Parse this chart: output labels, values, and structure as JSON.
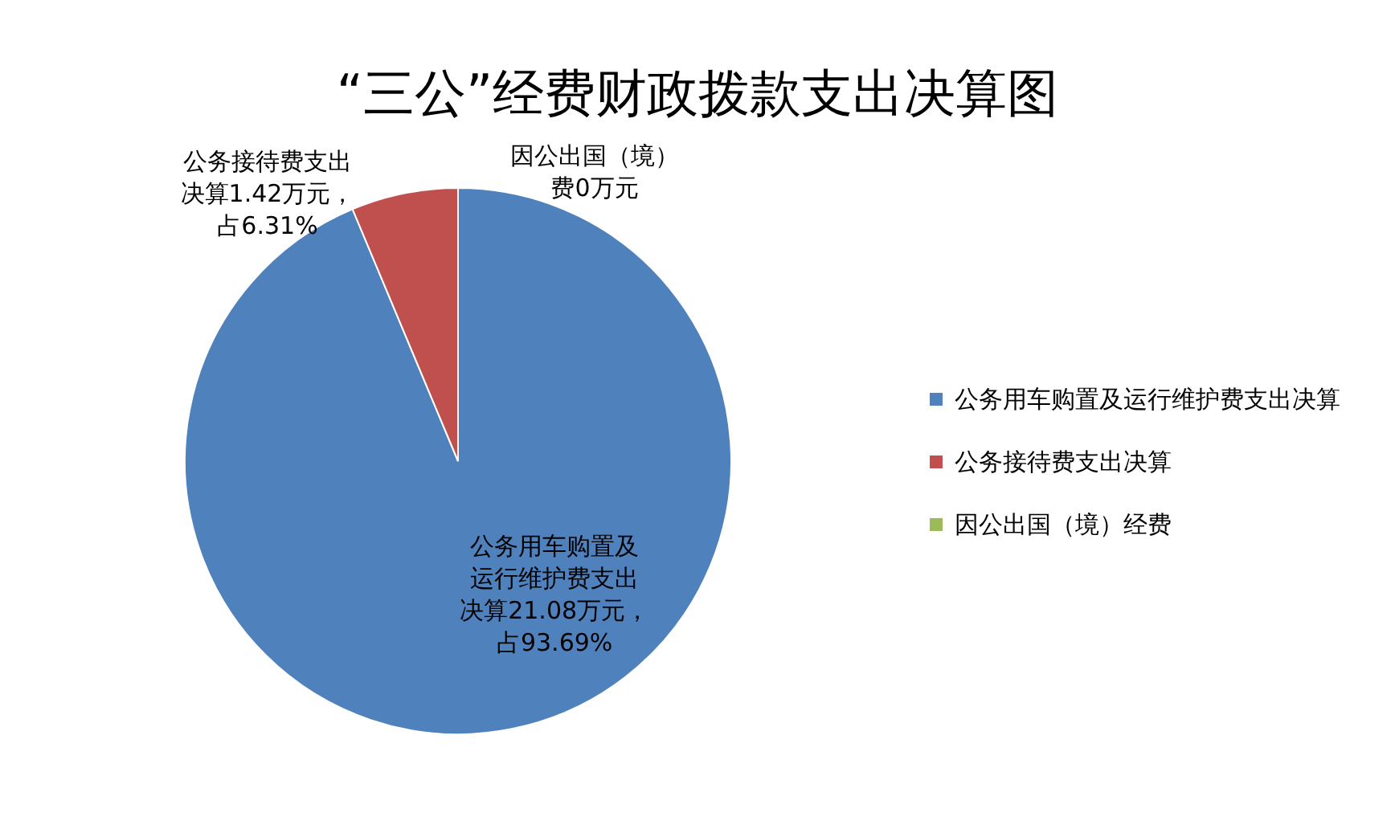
{
  "chart_data": {
    "type": "pie",
    "title": "“三公”经费财政拨款支出决算图",
    "categories": [
      "公务用车购置及运行维护费支出决算",
      "公务接待费支出决算",
      "因公出国（境）经费"
    ],
    "values": [
      21.08,
      1.42,
      0
    ],
    "colors": [
      "#4f81bd",
      "#c0504d",
      "#9bbb59"
    ],
    "value_labels": [
      "公务用车购置及运行维护费支出决算21.08万元，占93.69%",
      "公务接待费支出决算1.42万元，占6.31%",
      "因公出国（境）费0万元"
    ],
    "legend": "right"
  }
}
